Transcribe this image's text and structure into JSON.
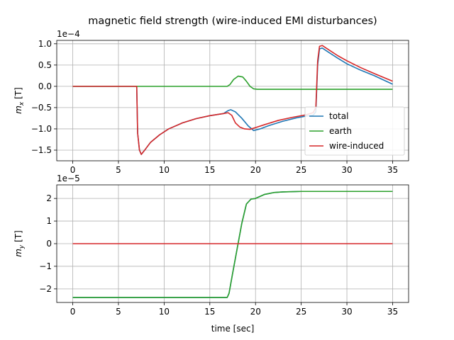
{
  "chart_data": {
    "title": "magnetic field strength (wire-induced EMI disturbances)",
    "type": "line",
    "colors": {
      "total": "#1f77b4",
      "earth": "#2ca02c",
      "wire-induced": "#d62728"
    },
    "legend": {
      "placement": "lower-right",
      "entries": [
        "total",
        "earth",
        "wire-induced"
      ]
    },
    "subplots": [
      {
        "ylabel": "m_x [T]",
        "ylabel_main": "m",
        "ylabel_sub": "x",
        "ylabel_unit": " [T]",
        "scale_label": "1e−4",
        "scale_factor": 0.0001,
        "xlim": [
          -1.75,
          36.75
        ],
        "ylim": [
          -1.75,
          1.08
        ],
        "xticks": [
          0,
          5,
          10,
          15,
          20,
          25,
          30,
          35
        ],
        "xtick_labels": [
          "0",
          "5",
          "10",
          "15",
          "20",
          "25",
          "30",
          "35"
        ],
        "yticks": [
          -1.5,
          -1.0,
          -0.5,
          0.0,
          0.5,
          1.0
        ],
        "ytick_labels": [
          "−1.5",
          "−1.0",
          "−0.5",
          "0.0",
          "0.5",
          "1.0"
        ],
        "grid": true,
        "has_legend": true,
        "series": [
          {
            "name": "total",
            "x": [
              0,
              7.0,
              7.1,
              7.3,
              7.5,
              7.8,
              8.5,
              9.5,
              10.5,
              12,
              13.5,
              15,
              16.5,
              17.0,
              17.3,
              17.8,
              18.5,
              19.2,
              19.8,
              20.5,
              21.5,
              23,
              24.5,
              25.5,
              26.3,
              26.6,
              26.8,
              27.0,
              27.3,
              28,
              29,
              30,
              31.5,
              33,
              35
            ],
            "y": [
              0,
              0,
              -1.1,
              -1.5,
              -1.6,
              -1.52,
              -1.32,
              -1.14,
              -1.0,
              -0.86,
              -0.76,
              -0.69,
              -0.64,
              -0.57,
              -0.55,
              -0.6,
              -0.75,
              -0.93,
              -1.04,
              -1.0,
              -0.92,
              -0.82,
              -0.74,
              -0.7,
              -0.68,
              -0.6,
              0.5,
              0.88,
              0.9,
              0.8,
              0.66,
              0.53,
              0.38,
              0.25,
              0.05
            ]
          },
          {
            "name": "earth",
            "x": [
              0,
              16.9,
              17.2,
              17.6,
              18.1,
              18.6,
              19.0,
              19.4,
              19.8,
              20.2,
              35
            ],
            "y": [
              0,
              0,
              0.04,
              0.16,
              0.24,
              0.22,
              0.12,
              0.0,
              -0.06,
              -0.07,
              -0.07
            ]
          },
          {
            "name": "wire-induced",
            "x": [
              0,
              7.0,
              7.1,
              7.3,
              7.5,
              7.8,
              8.5,
              9.5,
              10.5,
              12,
              13.5,
              15,
              16.5,
              17.0,
              17.4,
              17.8,
              18.3,
              18.8,
              19.4,
              20.0,
              21,
              22.5,
              24,
              25.5,
              26.3,
              26.6,
              26.8,
              27.0,
              27.3,
              28,
              29,
              30,
              31.5,
              33,
              35
            ],
            "y": [
              0,
              0,
              -1.1,
              -1.5,
              -1.6,
              -1.52,
              -1.32,
              -1.14,
              -1.0,
              -0.86,
              -0.76,
              -0.69,
              -0.64,
              -0.62,
              -0.68,
              -0.86,
              -0.96,
              -1.0,
              -1.01,
              -0.97,
              -0.9,
              -0.8,
              -0.73,
              -0.67,
              -0.62,
              -0.5,
              0.6,
              0.94,
              0.96,
              0.86,
              0.72,
              0.6,
              0.44,
              0.3,
              0.12
            ]
          }
        ]
      },
      {
        "ylabel": "m_y [T]",
        "ylabel_main": "m",
        "ylabel_sub": "y",
        "ylabel_unit": " [T]",
        "scale_label": "1e−5",
        "scale_factor": 1e-05,
        "xlabel": "time [sec]",
        "xlim": [
          -1.75,
          36.75
        ],
        "ylim": [
          -2.6,
          2.6
        ],
        "xticks": [
          0,
          5,
          10,
          15,
          20,
          25,
          30,
          35
        ],
        "xtick_labels": [
          "0",
          "5",
          "10",
          "15",
          "20",
          "25",
          "30",
          "35"
        ],
        "yticks": [
          -2,
          -1,
          0,
          1,
          2
        ],
        "ytick_labels": [
          "−2",
          "−1",
          "0",
          "1",
          "2"
        ],
        "grid": true,
        "has_legend": false,
        "series": [
          {
            "name": "total",
            "x": [
              0,
              16.9,
              17.1,
              17.5,
              18.0,
              18.5,
              19.0,
              19.5,
              20.0,
              21,
              22,
              23,
              25,
              35
            ],
            "y": [
              -2.38,
              -2.38,
              -2.2,
              -1.3,
              -0.2,
              0.9,
              1.75,
              1.97,
              2.0,
              2.18,
              2.26,
              2.29,
              2.31,
              2.31
            ]
          },
          {
            "name": "earth",
            "x": [
              0,
              16.9,
              17.1,
              17.5,
              18.0,
              18.5,
              19.0,
              19.5,
              20.0,
              21,
              22,
              23,
              25,
              35
            ],
            "y": [
              -2.38,
              -2.38,
              -2.2,
              -1.3,
              -0.2,
              0.9,
              1.75,
              1.97,
              2.0,
              2.18,
              2.26,
              2.29,
              2.31,
              2.31
            ]
          },
          {
            "name": "wire-induced",
            "x": [
              0,
              35
            ],
            "y": [
              0,
              0
            ]
          }
        ]
      }
    ]
  }
}
